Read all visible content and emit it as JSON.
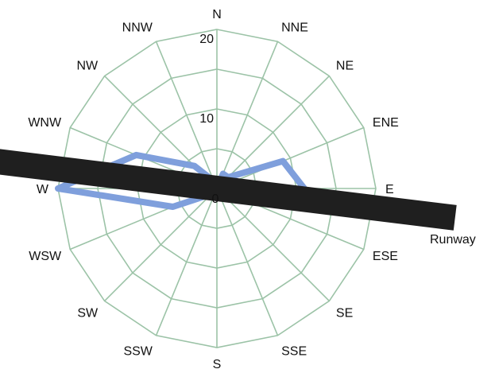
{
  "chart_data": {
    "type": "radar",
    "title": "",
    "directions": [
      "N",
      "NNE",
      "NE",
      "ENE",
      "E",
      "ESE",
      "SE",
      "SSE",
      "S",
      "SSW",
      "SW",
      "WSW",
      "W",
      "WNW",
      "NW",
      "NNW"
    ],
    "values": [
      0,
      2,
      2,
      9,
      11,
      4,
      1,
      1,
      1,
      1,
      1,
      6,
      20,
      11,
      4,
      1
    ],
    "rlim": [
      0,
      20
    ],
    "rticks": [
      0,
      10,
      20
    ],
    "rtick_labels": [
      "0",
      "10",
      "20"
    ],
    "grid": true,
    "annotation": {
      "label": "Runway",
      "orientation_deg_from_north": 97
    },
    "colors": {
      "grid": "#9cc3a7",
      "series": "#7f9fdc",
      "runway": "#1f1f1f",
      "text": "#111111"
    }
  }
}
